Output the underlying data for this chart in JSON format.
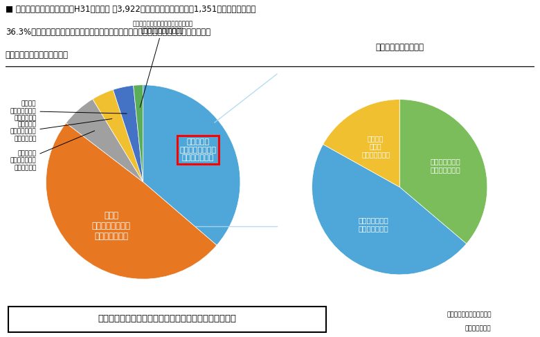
{
  "title_line1": "■ 固定資産税は、市の歳入（H31年度予算 約3,922億円）のうち、市税（約1,351億円）の中でも、",
  "title_line2": "36.3%を占め、福祉、救急、ごみ収集等基礎的な行政サービスを支える基幹税目として、",
  "title_line3": "重要な役割を果たしている。",
  "pie1_values": [
    36.3,
    49.1,
    5.9,
    3.7,
    3.4,
    1.6
  ],
  "pie1_colors": [
    "#4EA7D8",
    "#E87722",
    "#A0A0A0",
    "#F0C030",
    "#4472C4",
    "#5BAD5A"
  ],
  "pie2_values": [
    36.2,
    46.9,
    16.9
  ],
  "pie2_colors": [
    "#7BBD5A",
    "#4EA7D8",
    "#F0C030"
  ],
  "pie2_title": "＜固定資産税の内訳＞",
  "bottom_text": "市税（Ｈ３１年度予算）　１，３５１億３，４３７万円",
  "source_text1": "【データ元】市税のしおり",
  "source_text2": "Ｈ３１予算資料",
  "label_fixed": "固定資産税\n４９０億６千万円\n（３６．３％）",
  "label_shimin": "市民税\n６６３億６千万円\n（４９．１％）",
  "label_toshi": "都市計画税\n７９億８千万円\n（５．９％）",
  "label_tabako": "市たばこ税\n４９億９千万円\n（３．７％）",
  "label_jigyosho": "事業所税\n４６億４千万円\n（３．４％）",
  "label_sonota": "その他（軽自動車、鉱産税、入浴税）\n２１億３千万（１．６％）",
  "label_tochi": "土地　１７９億\n（３６．２％）",
  "label_kaoku": "家屋　２３２億\n（４６．９％）",
  "label_shokyaku": "償却資産\n７８億\n（１６．９％）",
  "conn_color": "#B0D8F0"
}
